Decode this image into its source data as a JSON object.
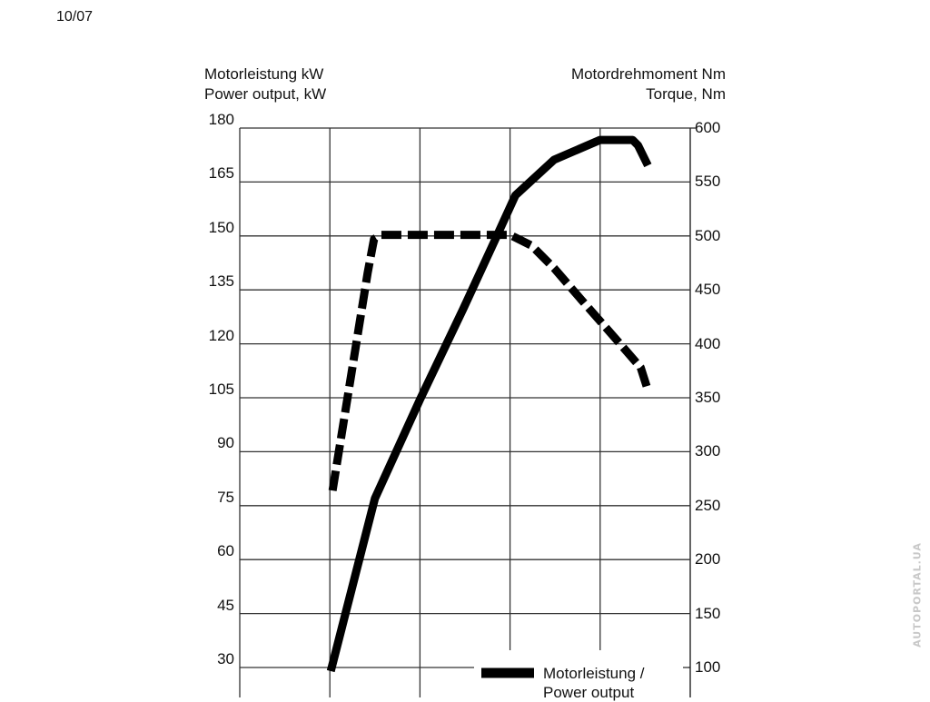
{
  "page_code": "10/07",
  "watermark": "AUTOPORTAL.UA",
  "chart_data": {
    "type": "line",
    "title": "",
    "ylabel_left": [
      "Motorleistung kW",
      "Power output, kW"
    ],
    "ylabel_right": [
      "Motordrehmoment Nm",
      "Torque, Nm"
    ],
    "ylim_left": [
      30,
      180
    ],
    "ylim_right": [
      100,
      600
    ],
    "yticks_left": [
      "180",
      "165",
      "150",
      "135",
      "120",
      "105",
      "90",
      "75",
      "60",
      "45",
      "30"
    ],
    "yticks_right": [
      "600",
      "550",
      "500",
      "450",
      "400",
      "350",
      "300",
      "250",
      "200",
      "150",
      "100"
    ],
    "xlim": [
      0,
      5
    ],
    "grid": true,
    "legend": {
      "position": "bottom-right",
      "entries": [
        {
          "label": "Motorleistung / Power output",
          "style": "solid"
        }
      ]
    },
    "series": [
      {
        "name": "Motorleistung / Power output",
        "axis": "left",
        "style": "solid",
        "color": "#000000",
        "x": [
          1.01,
          1.5,
          2.0,
          2.48,
          2.83,
          3.06,
          3.49,
          4.0,
          4.36,
          4.42,
          4.53
        ],
        "y": [
          29,
          77,
          104.5,
          129.7,
          148.7,
          161.3,
          171.2,
          176.7,
          176.7,
          175.2,
          169.6
        ]
      },
      {
        "axis": "right",
        "style": "dashed",
        "color": "#000000",
        "x": [
          1.03,
          1.42,
          1.49,
          1.57,
          3.0,
          3.24,
          3.49,
          3.79,
          4.19,
          4.45,
          4.53
        ],
        "y": [
          264,
          466,
          497,
          501,
          501,
          491,
          470,
          441,
          403,
          378,
          357
        ]
      }
    ]
  }
}
